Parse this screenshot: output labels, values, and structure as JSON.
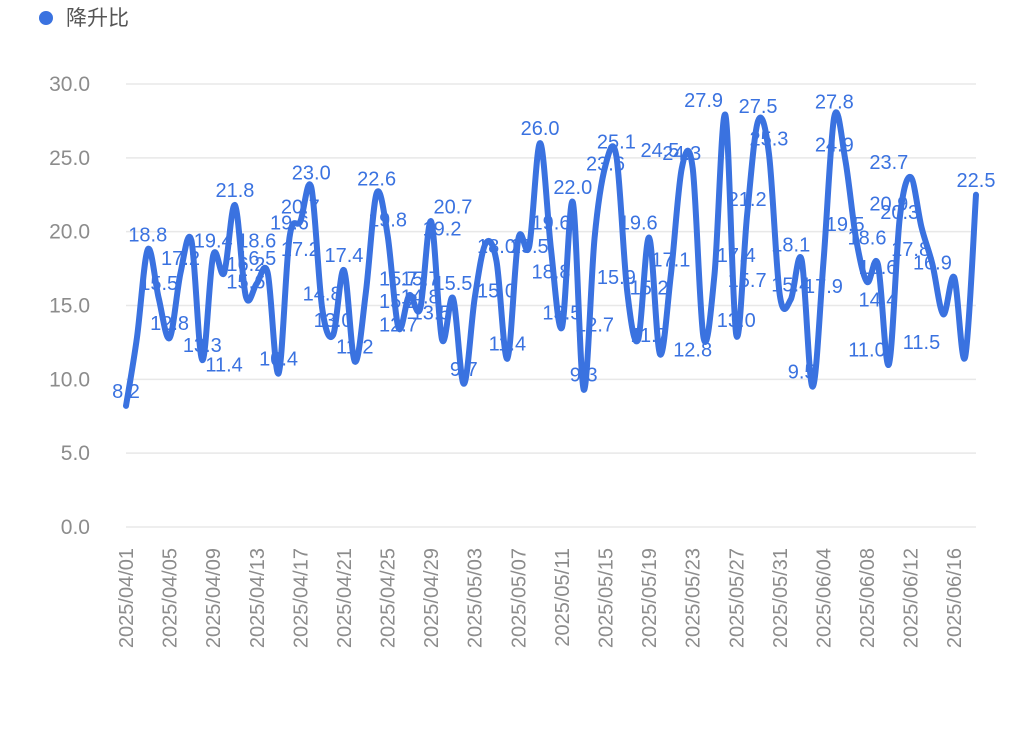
{
  "chart_data": {
    "type": "line",
    "title": "",
    "xlabel": "",
    "ylabel": "",
    "ylim": [
      0,
      30
    ],
    "yticks": [
      "0.0",
      "5.0",
      "10.0",
      "15.0",
      "20.0",
      "25.0",
      "30.0"
    ],
    "grid": true,
    "legend_position": "top-left",
    "color": "#3a72e0",
    "x_tick_labels": [
      "2025/04/01",
      "2025/04/05",
      "2025/04/09",
      "2025/04/13",
      "2025/04/17",
      "2025/04/21",
      "2025/04/25",
      "2025/04/29",
      "2025/05/03",
      "2025/05/07",
      "2025/05/11",
      "2025/05/15",
      "2025/05/19",
      "2025/05/23",
      "2025/05/27",
      "2025/05/31",
      "2025/06/04",
      "2025/06/08",
      "2025/06/12",
      "2025/06/16"
    ],
    "series": [
      {
        "name": "降升比",
        "x": [
          "2025/04/01",
          "2025/04/02",
          "2025/04/03",
          "2025/04/04",
          "2025/04/05",
          "2025/04/06",
          "2025/04/07",
          "2025/04/08",
          "2025/04/09",
          "2025/04/10",
          "2025/04/11",
          "2025/04/12",
          "2025/04/13",
          "2025/04/14",
          "2025/04/15",
          "2025/04/16",
          "2025/04/17",
          "2025/04/18",
          "2025/04/19",
          "2025/04/20",
          "2025/04/21",
          "2025/04/22",
          "2025/04/23",
          "2025/04/24",
          "2025/04/25",
          "2025/04/26",
          "2025/04/27",
          "2025/04/28",
          "2025/04/29",
          "2025/04/30",
          "2025/05/01",
          "2025/05/02",
          "2025/05/03",
          "2025/05/04",
          "2025/05/05",
          "2025/05/06",
          "2025/05/07",
          "2025/05/08",
          "2025/05/09",
          "2025/05/10",
          "2025/05/11",
          "2025/05/12",
          "2025/05/13",
          "2025/05/14",
          "2025/05/15",
          "2025/05/16",
          "2025/05/17",
          "2025/05/18",
          "2025/05/19",
          "2025/05/20",
          "2025/05/21",
          "2025/05/22",
          "2025/05/23",
          "2025/05/24",
          "2025/05/25",
          "2025/05/26",
          "2025/05/27",
          "2025/05/28",
          "2025/05/29",
          "2025/05/30",
          "2025/05/31",
          "2025/06/01",
          "2025/06/02",
          "2025/06/03",
          "2025/06/04",
          "2025/06/05",
          "2025/06/06",
          "2025/06/07",
          "2025/06/08",
          "2025/06/09",
          "2025/06/10",
          "2025/06/11",
          "2025/06/12",
          "2025/06/13",
          "2025/06/14",
          "2025/06/15",
          "2025/06/16",
          "2025/06/17",
          "2025/06/18"
        ],
        "values": [
          8.2,
          12.8,
          18.8,
          15.5,
          12.8,
          17.2,
          19.4,
          11.3,
          18.4,
          17.2,
          21.8,
          15.6,
          16.5,
          17.2,
          10.4,
          19.6,
          20.7,
          23.0,
          14.8,
          13.0,
          17.4,
          11.2,
          15.8,
          22.6,
          19.8,
          13.5,
          15.7,
          14.8,
          20.7,
          12.7,
          15.5,
          9.7,
          15.5,
          19.2,
          18.0,
          11.4,
          19.5,
          19.0,
          26.0,
          18.8,
          13.5,
          22.0,
          9.3,
          19.6,
          24.5,
          25.1,
          15.9,
          12.7,
          19.6,
          11.7,
          17.1,
          24.3,
          24.3,
          12.8,
          17.1,
          27.9,
          13.0,
          21.2,
          27.5,
          25.3,
          15.7,
          15.4,
          18.1,
          9.5,
          17.9,
          27.8,
          24.9,
          19.5,
          16.6,
          17.8,
          11.0,
          20.9,
          23.7,
          20.3,
          17.8,
          14.4,
          16.9,
          11.5,
          22.5
        ]
      }
    ],
    "labels": [
      {
        "text": "8.2",
        "x": "2025/04/01",
        "y": 8.2
      },
      {
        "text": "18.8",
        "x": "2025/04/03",
        "y": 18.8
      },
      {
        "text": "15.5",
        "x": "2025/04/04",
        "y": 15.5
      },
      {
        "text": "12.8",
        "x": "2025/04/05",
        "y": 12.8
      },
      {
        "text": "17.2",
        "x": "2025/04/06",
        "y": 17.2
      },
      {
        "text": "13.3",
        "x": "2025/04/08",
        "y": 11.3
      },
      {
        "text": "19.4",
        "x": "2025/04/09",
        "y": 18.4
      },
      {
        "text": "11.4",
        "x": "2025/04/10",
        "y": 10.0
      },
      {
        "text": "21.8",
        "x": "2025/04/11",
        "y": 21.8
      },
      {
        "text": "15.6",
        "x": "2025/04/12",
        "y": 15.6
      },
      {
        "text": "16.2",
        "x": "2025/04/12",
        "y": 16.8
      },
      {
        "text": "18.6",
        "x": "2025/04/13",
        "y": 18.4
      },
      {
        "text": "16.5",
        "x": "2025/04/13",
        "y": 17.2
      },
      {
        "text": "10.4",
        "x": "2025/04/15",
        "y": 10.4
      },
      {
        "text": "19.6",
        "x": "2025/04/16",
        "y": 19.6
      },
      {
        "text": "20.7",
        "x": "2025/04/17",
        "y": 20.7
      },
      {
        "text": "17.2",
        "x": "2025/04/17",
        "y": 17.8
      },
      {
        "text": "23.0",
        "x": "2025/04/18",
        "y": 23.0
      },
      {
        "text": "14.8",
        "x": "2025/04/19",
        "y": 14.8
      },
      {
        "text": "13.0",
        "x": "2025/04/20",
        "y": 13.0
      },
      {
        "text": "17.4",
        "x": "2025/04/21",
        "y": 17.4
      },
      {
        "text": "11.2",
        "x": "2025/04/22",
        "y": 11.2
      },
      {
        "text": "22.6",
        "x": "2025/04/24",
        "y": 22.6
      },
      {
        "text": "19.8",
        "x": "2025/04/25",
        "y": 19.8
      },
      {
        "text": "15.7",
        "x": "2025/04/26",
        "y": 15.8
      },
      {
        "text": "15.2",
        "x": "2025/04/26",
        "y": 14.3
      },
      {
        "text": "12.7",
        "x": "2025/04/26",
        "y": 12.7
      },
      {
        "text": "15.7",
        "x": "2025/04/28",
        "y": 15.8
      },
      {
        "text": "14.8",
        "x": "2025/04/28",
        "y": 14.6
      },
      {
        "text": "13.5",
        "x": "2025/04/29",
        "y": 13.5
      },
      {
        "text": "19.2",
        "x": "2025/04/30",
        "y": 19.2
      },
      {
        "text": "20.7",
        "x": "2025/05/01",
        "y": 20.7
      },
      {
        "text": "15.5",
        "x": "2025/05/01",
        "y": 15.5
      },
      {
        "text": "9.7",
        "x": "2025/05/02",
        "y": 9.7
      },
      {
        "text": "18.0",
        "x": "2025/05/05",
        "y": 18.0
      },
      {
        "text": "15.0",
        "x": "2025/05/05",
        "y": 15.0
      },
      {
        "text": "11.4",
        "x": "2025/05/06",
        "y": 11.4
      },
      {
        "text": "19.5",
        "x": "2025/05/08",
        "y": 18.0
      },
      {
        "text": "26.0",
        "x": "2025/05/09",
        "y": 26.0
      },
      {
        "text": "19.6",
        "x": "2025/05/10",
        "y": 19.6
      },
      {
        "text": "18.8",
        "x": "2025/05/10",
        "y": 16.3
      },
      {
        "text": "13.5",
        "x": "2025/05/11",
        "y": 13.5
      },
      {
        "text": "22.0",
        "x": "2025/05/12",
        "y": 22.0
      },
      {
        "text": "9.3",
        "x": "2025/05/13",
        "y": 9.3
      },
      {
        "text": "12.7",
        "x": "2025/05/14",
        "y": 12.7
      },
      {
        "text": "23.6",
        "x": "2025/05/15",
        "y": 23.6
      },
      {
        "text": "25.1",
        "x": "2025/05/16",
        "y": 25.1
      },
      {
        "text": "15.9",
        "x": "2025/05/16",
        "y": 15.9
      },
      {
        "text": "19.6",
        "x": "2025/05/18",
        "y": 19.6
      },
      {
        "text": "15.2",
        "x": "2025/05/19",
        "y": 15.2
      },
      {
        "text": "11.7",
        "x": "2025/05/19",
        "y": 12.0
      },
      {
        "text": "24.5",
        "x": "2025/05/20",
        "y": 24.5
      },
      {
        "text": "17.1",
        "x": "2025/05/21",
        "y": 17.1
      },
      {
        "text": "24.3",
        "x": "2025/05/22",
        "y": 24.3
      },
      {
        "text": "12.8",
        "x": "2025/05/23",
        "y": 11.0
      },
      {
        "text": "27.9",
        "x": "2025/05/24",
        "y": 27.9
      },
      {
        "text": "13.0",
        "x": "2025/05/27",
        "y": 13.0
      },
      {
        "text": "17.4",
        "x": "2025/05/27",
        "y": 17.4
      },
      {
        "text": "15.7",
        "x": "2025/05/28",
        "y": 15.7
      },
      {
        "text": "21.2",
        "x": "2025/05/28",
        "y": 21.2
      },
      {
        "text": "27.5",
        "x": "2025/05/29",
        "y": 27.5
      },
      {
        "text": "25.3",
        "x": "2025/05/30",
        "y": 25.3
      },
      {
        "text": "15.4",
        "x": "2025/06/01",
        "y": 15.4
      },
      {
        "text": "18.1",
        "x": "2025/06/01",
        "y": 18.1
      },
      {
        "text": "9.5",
        "x": "2025/06/02",
        "y": 9.5
      },
      {
        "text": "17.9",
        "x": "2025/06/04",
        "y": 15.3
      },
      {
        "text": "27.8",
        "x": "2025/06/05",
        "y": 27.8
      },
      {
        "text": "24.9",
        "x": "2025/06/05",
        "y": 24.9
      },
      {
        "text": "19.5",
        "x": "2025/06/06",
        "y": 19.5
      },
      {
        "text": "18.6",
        "x": "2025/06/08",
        "y": 18.6
      },
      {
        "text": "16.6",
        "x": "2025/06/09",
        "y": 16.6
      },
      {
        "text": "11.0",
        "x": "2025/06/08",
        "y": 11.0
      },
      {
        "text": "14.4",
        "x": "2025/06/09",
        "y": 14.4
      },
      {
        "text": "20.9",
        "x": "2025/06/10",
        "y": 20.9
      },
      {
        "text": "23.7",
        "x": "2025/06/10",
        "y": 23.7
      },
      {
        "text": "20.3",
        "x": "2025/06/11",
        "y": 20.3
      },
      {
        "text": "17.8",
        "x": "2025/06/12",
        "y": 17.8
      },
      {
        "text": "11.5",
        "x": "2025/06/13",
        "y": 11.5
      },
      {
        "text": "16.9",
        "x": "2025/06/14",
        "y": 16.9
      },
      {
        "text": "22.5",
        "x": "2025/06/18",
        "y": 22.5
      }
    ]
  }
}
